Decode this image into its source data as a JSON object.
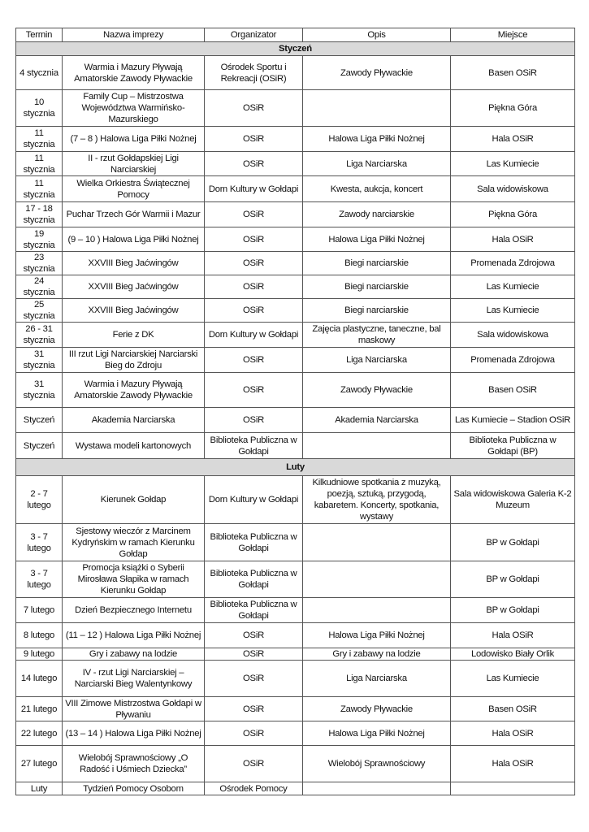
{
  "headers": [
    "Termin",
    "Nazwa imprezy",
    "Organizator",
    "Opis",
    "Miejsce"
  ],
  "rows": [
    {
      "section": "Styczeń"
    },
    {
      "cells": [
        "4 stycznia",
        "Warmia i Mazury Pływają Amatorskie Zawody Pływackie",
        "Ośrodek Sportu i Rekreacji (OSiR)",
        "Zawody Pływackie",
        "Basen OSiR"
      ]
    },
    {
      "cells": [
        "10 stycznia",
        "Family Cup – Mistrzostwa Województwa Warmińsko-Mazurskiego",
        "OSiR",
        "",
        "Piękna Góra"
      ]
    },
    {
      "cells": [
        "11 stycznia",
        "(7 – 8 ) Halowa Liga Piłki Nożnej",
        "OSiR",
        "Halowa Liga Piłki Nożnej",
        "Hala OSiR"
      ]
    },
    {
      "cells": [
        "11 stycznia",
        "II - rzut Gołdapskiej Ligi Narciarskiej",
        "OSiR",
        "Liga Narciarska",
        "Las Kumiecie"
      ]
    },
    {
      "cells": [
        "11 stycznia",
        "Wielka Orkiestra Świątecznej Pomocy",
        "Dom Kultury w Gołdapi",
        "Kwesta, aukcja, koncert",
        "Sala widowiskowa"
      ]
    },
    {
      "cells": [
        "17 - 18 stycznia",
        "Puchar Trzech Gór Warmii i Mazur",
        "OSiR",
        "Zawody narciarskie",
        "Piękna Góra"
      ]
    },
    {
      "cells": [
        "19 stycznia",
        "(9 – 10 ) Halowa Liga Piłki Nożnej",
        "OSiR",
        "Halowa Liga Piłki Nożnej",
        "Hala OSiR"
      ]
    },
    {
      "cells": [
        "23 stycznia",
        "XXVIII Bieg Jaćwingów",
        "OSiR",
        "Biegi narciarskie",
        "Promenada Zdrojowa"
      ]
    },
    {
      "cells": [
        "24 stycznia",
        "XXVIII Bieg Jaćwingów",
        "OSiR",
        "Biegi narciarskie",
        "Las Kumiecie"
      ]
    },
    {
      "cells": [
        "25 stycznia",
        "XXVIII Bieg Jaćwingów",
        "OSiR",
        "Biegi narciarskie",
        "Las Kumiecie"
      ]
    },
    {
      "cells": [
        "26 - 31 stycznia",
        "Ferie z DK",
        "Dom Kultury w Gołdapi",
        "Zajęcia plastyczne, taneczne, bal maskowy",
        "Sala widowiskowa"
      ]
    },
    {
      "cells": [
        "31 stycznia",
        "III rzut Ligi Narciarskiej Narciarski Bieg do Zdroju",
        "OSiR",
        "Liga Narciarska",
        "Promenada Zdrojowa"
      ]
    },
    {
      "cells": [
        "31 stycznia",
        "Warmia i Mazury Pływają Amatorskie Zawody Pływackie",
        "OSiR",
        "Zawody Pływackie",
        "Basen  OSiR"
      ]
    },
    {
      "cells": [
        "Styczeń",
        "Akademia Narciarska",
        "OSiR",
        "Akademia Narciarska",
        "Las Kumiecie – Stadion OSiR"
      ]
    },
    {
      "cells": [
        "Styczeń",
        "Wystawa modeli kartonowych",
        "Biblioteka Publiczna w Gołdapi",
        "",
        "Biblioteka Publiczna w Gołdapi (BP)"
      ]
    },
    {
      "section": "Luty"
    },
    {
      "cells": [
        "2 - 7 lutego",
        "Kierunek Gołdap",
        "Dom Kultury w Gołdapi",
        "Kilkudniowe spotkania z muzyką, poezją, sztuką, przygodą, kabaretem. Koncerty, spotkania, wystawy",
        "Sala widowiskowa Galeria K-2 Muzeum"
      ]
    },
    {
      "cells": [
        "3 - 7 lutego",
        "Sjestowy wieczór z Marcinem Kydryńskim w ramach Kierunku Gołdap",
        "Biblioteka Publiczna w Gołdapi",
        "",
        "BP w Gołdapi"
      ]
    },
    {
      "cells": [
        "3 - 7 lutego",
        "Promocja książki o Syberii Mirosława Słapika w ramach Kierunku Gołdap",
        "Biblioteka Publiczna w Gołdapi",
        "",
        "BP w Gołdapi"
      ]
    },
    {
      "cells": [
        "7 lutego",
        "Dzień Bezpiecznego Internetu",
        "Biblioteka Publiczna w Gołdapi",
        "",
        "BP w Gołdapi"
      ]
    },
    {
      "cells": [
        "8 lutego",
        "(11 – 12 ) Halowa Liga Piłki Nożnej",
        "OSiR",
        "Halowa Liga Piłki Nożnej",
        "Hala OSiR"
      ]
    },
    {
      "cells": [
        "9 lutego",
        "Gry i zabawy na lodzie",
        "OSiR",
        "Gry i zabawy na lodzie",
        "Lodowisko Biały Orlik"
      ]
    },
    {
      "cells": [
        "14 lutego",
        "IV - rzut Ligi Narciarskiej – Narciarski Bieg Walentynkowy",
        "OSiR",
        "Liga Narciarska",
        "Las Kumiecie"
      ]
    },
    {
      "cells": [
        "21 lutego",
        "VIII Zimowe Mistrzostwa Gołdapi w Pływaniu",
        "OSiR",
        "Zawody Pływackie",
        "Basen OSiR"
      ]
    },
    {
      "cells": [
        "22 lutego",
        "(13 – 14 ) Halowa Liga Piłki Nożnej",
        "OSiR",
        "Halowa Liga Piłki Nożnej",
        "Hala OSiR"
      ]
    },
    {
      "cells": [
        "27 lutego",
        "Wielobój Sprawnościowy „O Radość i Uśmiech Dziecka”",
        "OSiR",
        "Wielobój Sprawnościowy",
        "Hala OSiR"
      ]
    },
    {
      "cells": [
        "Luty",
        "Tydzień Pomocy Osobom",
        "Ośrodek Pomocy",
        "",
        ""
      ]
    }
  ]
}
